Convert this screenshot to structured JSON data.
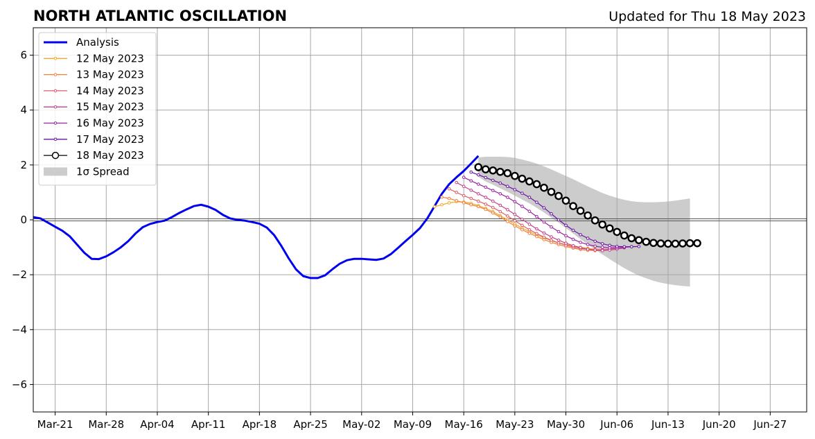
{
  "chart_data": {
    "type": "line",
    "title": "NORTH ATLANTIC OSCILLATION",
    "subtitle": "Updated for Thu 18 May 2023",
    "xlabel": "",
    "ylabel": "",
    "xlim": [
      "2023-03-18",
      "2023-07-02"
    ],
    "ylim": [
      -7,
      7
    ],
    "grid": true,
    "legend_position": "top-left",
    "x_ticks": [
      "Mar-21",
      "Mar-28",
      "Apr-04",
      "Apr-11",
      "Apr-18",
      "Apr-25",
      "May-02",
      "May-09",
      "May-16",
      "May-23",
      "May-30",
      "Jun-06",
      "Jun-13",
      "Jun-20",
      "Jun-27"
    ],
    "x_tick_dates": [
      "2023-03-21",
      "2023-03-28",
      "2023-04-04",
      "2023-04-11",
      "2023-04-18",
      "2023-04-25",
      "2023-05-02",
      "2023-05-09",
      "2023-05-16",
      "2023-05-23",
      "2023-05-30",
      "2023-06-06",
      "2023-06-13",
      "2023-06-20",
      "2023-06-27"
    ],
    "y_ticks": [
      -6,
      -4,
      -2,
      0,
      2,
      4,
      6
    ],
    "y_tick_labels": [
      "−6",
      "−4",
      "−2",
      "0",
      "2",
      "4",
      "6"
    ],
    "analysis": {
      "name": "Analysis",
      "color": "#0000ee",
      "start": "2023-03-18",
      "values": [
        0.1,
        0.05,
        -0.1,
        -0.25,
        -0.4,
        -0.6,
        -0.9,
        -1.2,
        -1.42,
        -1.43,
        -1.33,
        -1.18,
        -1.0,
        -0.78,
        -0.5,
        -0.27,
        -0.15,
        -0.08,
        -0.03,
        0.1,
        0.25,
        0.38,
        0.5,
        0.55,
        0.48,
        0.36,
        0.18,
        0.05,
        0.0,
        -0.03,
        -0.08,
        -0.14,
        -0.28,
        -0.55,
        -0.95,
        -1.4,
        -1.8,
        -2.05,
        -2.12,
        -2.12,
        -2.02,
        -1.8,
        -1.6,
        -1.47,
        -1.42,
        -1.42,
        -1.44,
        -1.46,
        -1.41,
        -1.25,
        -1.02,
        -0.78,
        -0.55,
        -0.3,
        0.05,
        0.5,
        0.95,
        1.3,
        1.55,
        1.78,
        2.05,
        2.33
      ]
    },
    "forecasts": [
      {
        "name": "12 May 2023",
        "color": "#f5a623",
        "start": "2023-05-12",
        "values": [
          0.48,
          0.55,
          0.62,
          0.66,
          0.65,
          0.6,
          0.52,
          0.42,
          0.3,
          0.15,
          0.0,
          -0.15,
          -0.3,
          -0.43,
          -0.55,
          -0.66,
          -0.76,
          -0.84,
          -0.9,
          -0.96,
          -1.0,
          -1.04,
          -1.07
        ]
      },
      {
        "name": "13 May 2023",
        "color": "#f07f3a",
        "start": "2023-05-13",
        "values": [
          0.83,
          0.78,
          0.7,
          0.62,
          0.55,
          0.48,
          0.38,
          0.25,
          0.1,
          -0.06,
          -0.22,
          -0.36,
          -0.49,
          -0.61,
          -0.72,
          -0.82,
          -0.9,
          -0.97,
          -1.03,
          -1.08,
          -1.11,
          -1.12,
          -1.12
        ]
      },
      {
        "name": "14 May 2023",
        "color": "#dd5a68",
        "start": "2023-05-14",
        "values": [
          1.13,
          1.0,
          0.88,
          0.78,
          0.68,
          0.57,
          0.45,
          0.3,
          0.14,
          -0.03,
          -0.2,
          -0.36,
          -0.5,
          -0.63,
          -0.74,
          -0.84,
          -0.92,
          -0.99,
          -1.04,
          -1.07,
          -1.09,
          -1.09,
          -1.07,
          -1.03
        ]
      },
      {
        "name": "15 May 2023",
        "color": "#c2408a",
        "start": "2023-05-15",
        "values": [
          1.36,
          1.22,
          1.08,
          0.95,
          0.82,
          0.68,
          0.53,
          0.37,
          0.2,
          0.02,
          -0.16,
          -0.33,
          -0.48,
          -0.62,
          -0.74,
          -0.85,
          -0.94,
          -1.01,
          -1.07,
          -1.1,
          -1.12,
          -1.1,
          -1.07,
          -1.02
        ]
      },
      {
        "name": "16 May 2023",
        "color": "#9b1fa6",
        "start": "2023-05-16",
        "values": [
          1.55,
          1.42,
          1.3,
          1.19,
          1.07,
          0.95,
          0.82,
          0.66,
          0.49,
          0.31,
          0.12,
          -0.08,
          -0.26,
          -0.43,
          -0.58,
          -0.71,
          -0.82,
          -0.9,
          -0.96,
          -1.0,
          -1.02,
          -1.02,
          -1.0,
          -0.98
        ]
      },
      {
        "name": "17 May 2023",
        "color": "#6a12a0",
        "start": "2023-05-17",
        "values": [
          1.74,
          1.64,
          1.54,
          1.44,
          1.34,
          1.22,
          1.1,
          0.97,
          0.82,
          0.64,
          0.44,
          0.22,
          0.0,
          -0.2,
          -0.38,
          -0.54,
          -0.67,
          -0.78,
          -0.87,
          -0.93,
          -0.97,
          -0.98,
          -0.98,
          -0.97
        ]
      },
      {
        "name": "18 May 2023",
        "color": "#000000",
        "start": "2023-05-18",
        "values": [
          1.92,
          1.84,
          1.8,
          1.75,
          1.7,
          1.6,
          1.5,
          1.4,
          1.3,
          1.17,
          1.02,
          0.87,
          0.7,
          0.5,
          0.33,
          0.16,
          -0.02,
          -0.17,
          -0.31,
          -0.44,
          -0.57,
          -0.67,
          -0.74,
          -0.8,
          -0.84,
          -0.86,
          -0.87,
          -0.87,
          -0.86,
          -0.85,
          -0.85
        ]
      }
    ],
    "spread": {
      "name": "1σ Spread",
      "color": "#cccccc",
      "start": "2023-05-18",
      "upper": [
        2.27,
        2.3,
        2.3,
        2.3,
        2.29,
        2.26,
        2.2,
        2.13,
        2.05,
        1.95,
        1.84,
        1.72,
        1.6,
        1.48,
        1.35,
        1.22,
        1.1,
        0.98,
        0.88,
        0.8,
        0.73,
        0.68,
        0.65,
        0.64,
        0.64,
        0.65,
        0.67,
        0.7,
        0.74,
        0.78
      ],
      "lower": [
        1.57,
        1.4,
        1.28,
        1.15,
        1.02,
        0.88,
        0.74,
        0.6,
        0.44,
        0.27,
        0.08,
        -0.1,
        -0.3,
        -0.5,
        -0.7,
        -0.9,
        -1.08,
        -1.26,
        -1.43,
        -1.6,
        -1.76,
        -1.9,
        -2.03,
        -2.13,
        -2.22,
        -2.29,
        -2.34,
        -2.38,
        -2.41,
        -2.43
      ]
    },
    "legend": [
      {
        "label": "Analysis",
        "style": "thick",
        "color": "#0000ee"
      },
      {
        "label": "12 May 2023",
        "style": "thin",
        "color": "#f5a623"
      },
      {
        "label": "13 May 2023",
        "style": "thin",
        "color": "#f07f3a"
      },
      {
        "label": "14 May 2023",
        "style": "thin",
        "color": "#dd5a68"
      },
      {
        "label": "15 May 2023",
        "style": "thin",
        "color": "#c2408a"
      },
      {
        "label": "16 May 2023",
        "style": "thin",
        "color": "#9b1fa6"
      },
      {
        "label": "17 May 2023",
        "style": "thin",
        "color": "#6a12a0"
      },
      {
        "label": "18 May 2023",
        "style": "circle",
        "color": "#000000"
      },
      {
        "label": "1σ Spread",
        "style": "patch",
        "color": "#cccccc"
      }
    ]
  }
}
